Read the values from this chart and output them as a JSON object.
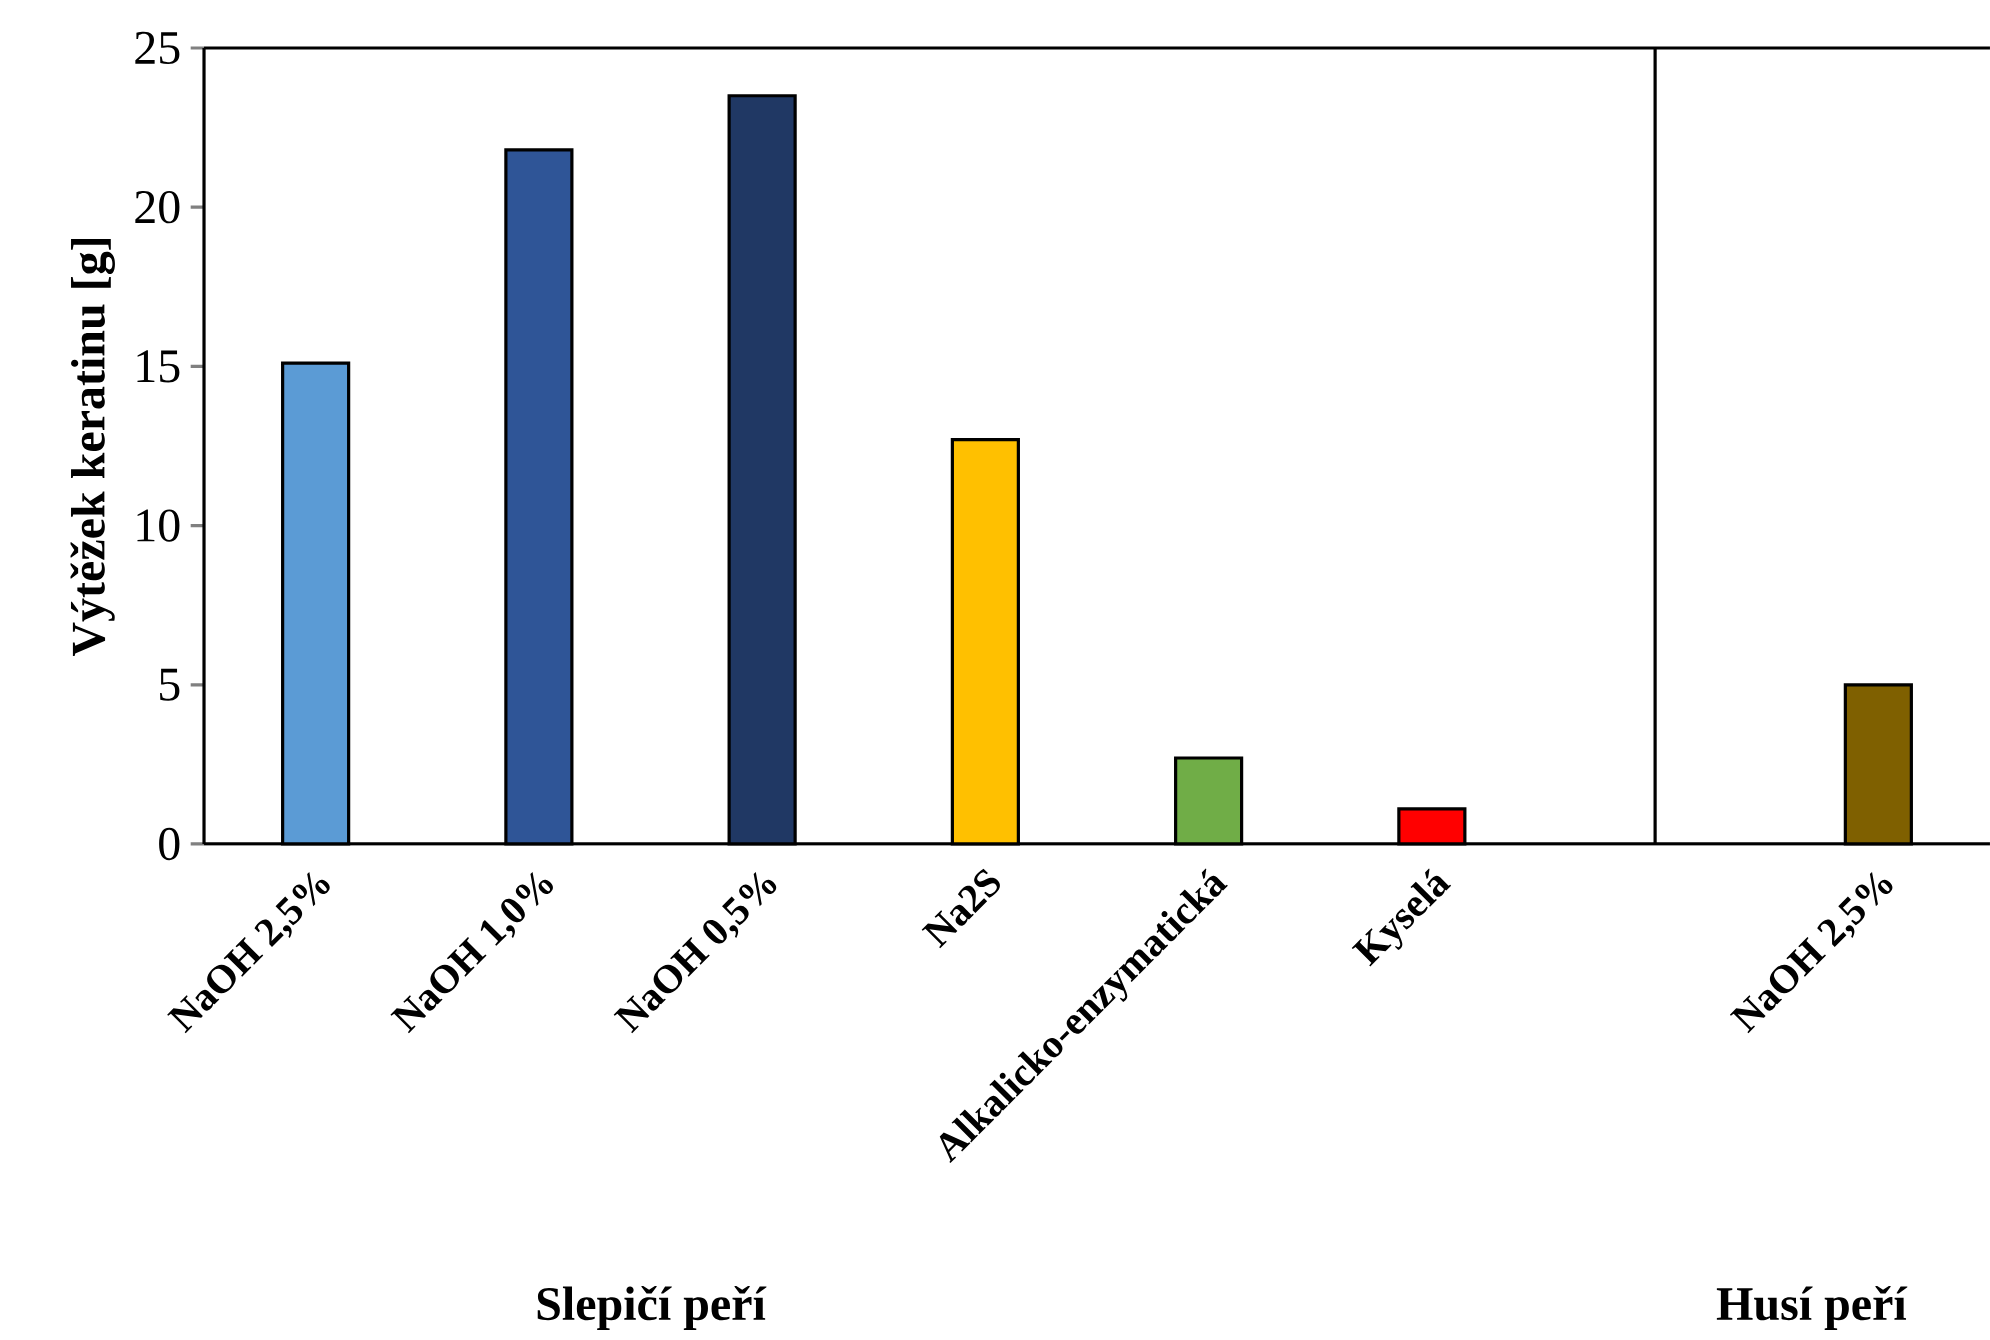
{
  "chart_data": {
    "type": "bar",
    "ylabel": "Výtěžek keratinu [g]",
    "categories": [
      "NaOH 2,5%",
      "NaOH 1,0%",
      "NaOH 0,5%",
      "Na2S",
      "Alkalicko-enzymatická",
      "Kyselá",
      null,
      "NaOH 2,5%"
    ],
    "values": [
      15.1,
      21.8,
      23.5,
      12.7,
      2.7,
      1.1,
      null,
      5.0
    ],
    "colors": [
      "#5b9bd5",
      "#2f5597",
      "#203864",
      "#ffc000",
      "#70ad47",
      "#ff0000",
      "#ffffff",
      "#7f6000"
    ],
    "ylim": [
      0,
      25
    ],
    "yticks": [
      0,
      5,
      10,
      15,
      20,
      25
    ],
    "annotations": [
      "Slepičí peří",
      "Husí peří"
    ]
  }
}
